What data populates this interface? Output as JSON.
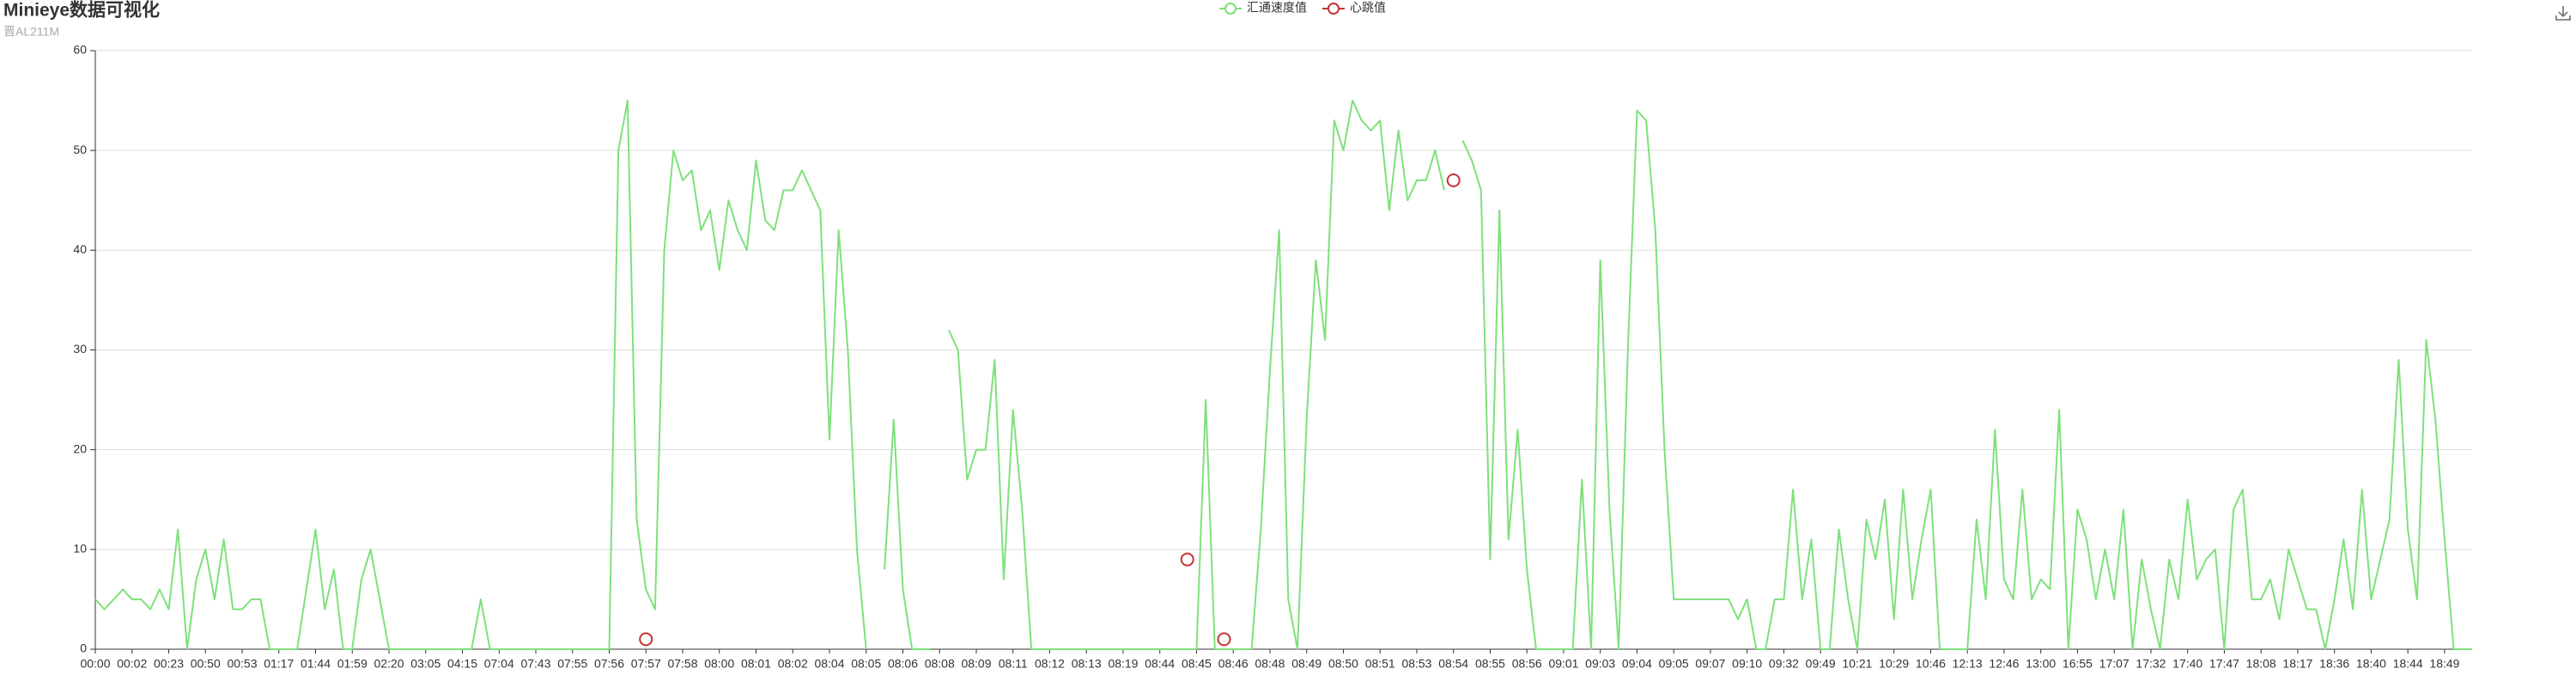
{
  "chart_data": {
    "type": "line",
    "title": "Minieye数据可视化",
    "subtitle": "晋AL211M",
    "categories": [
      "00:00",
      null,
      null,
      null,
      "00:02",
      null,
      null,
      null,
      "00:23",
      null,
      null,
      null,
      "00:50",
      null,
      null,
      null,
      "00:53",
      null,
      null,
      null,
      "01:17",
      null,
      null,
      null,
      "01:44",
      null,
      null,
      null,
      "01:59",
      null,
      null,
      null,
      "02:20",
      null,
      null,
      null,
      "03:05",
      null,
      null,
      null,
      "04:15",
      null,
      null,
      null,
      "07:04",
      null,
      null,
      null,
      "07:43",
      null,
      null,
      null,
      "07:55",
      null,
      null,
      null,
      "07:56",
      null,
      null,
      null,
      "07:57",
      null,
      null,
      null,
      "07:58",
      null,
      null,
      null,
      "08:00",
      null,
      null,
      null,
      "08:01",
      null,
      null,
      null,
      "08:02",
      null,
      null,
      null,
      "08:04",
      null,
      null,
      null,
      "08:05",
      null,
      null,
      null,
      "08:06",
      null,
      null,
      null,
      "08:08",
      null,
      null,
      null,
      "08:09",
      null,
      null,
      null,
      "08:11",
      null,
      null,
      null,
      "08:12",
      null,
      null,
      null,
      "08:13",
      null,
      null,
      null,
      "08:19",
      null,
      null,
      null,
      "08:44",
      null,
      null,
      null,
      "08:45",
      null,
      null,
      null,
      "08:46",
      null,
      null,
      null,
      "08:48",
      null,
      null,
      null,
      "08:49",
      null,
      null,
      null,
      "08:50",
      null,
      null,
      null,
      "08:51",
      null,
      null,
      null,
      "08:53",
      null,
      null,
      null,
      "08:54",
      null,
      null,
      null,
      "08:55",
      null,
      null,
      null,
      "08:56",
      null,
      null,
      null,
      "09:01",
      null,
      null,
      null,
      "09:03",
      null,
      null,
      null,
      "09:04",
      null,
      null,
      null,
      "09:05",
      null,
      null,
      null,
      "09:07",
      null,
      null,
      null,
      "09:10",
      null,
      null,
      null,
      "09:32",
      null,
      null,
      null,
      "09:49",
      null,
      null,
      null,
      "10:21",
      null,
      null,
      null,
      "10:29",
      null,
      null,
      null,
      "10:46",
      null,
      null,
      null,
      "12:13",
      null,
      null,
      null,
      "12:46",
      null,
      null,
      null,
      "13:00",
      null,
      null,
      null,
      "16:55",
      null,
      null,
      null,
      "17:07",
      null,
      null,
      null,
      "17:32",
      null,
      null,
      null,
      "17:40",
      null,
      null,
      null,
      "17:47",
      null,
      null,
      null,
      "18:08",
      null,
      null,
      null,
      "18:17",
      null,
      null,
      null,
      "18:36",
      null,
      null,
      null,
      "18:40",
      null,
      null,
      null,
      "18:44",
      null,
      null,
      null,
      "18:49",
      null,
      null,
      null
    ],
    "series": [
      {
        "name": "汇通速度值",
        "color": "#7fe07b",
        "values": [
          5,
          4,
          5,
          6,
          5,
          5,
          4,
          6,
          4,
          12,
          0,
          7,
          10,
          5,
          11,
          4,
          4,
          5,
          5,
          0,
          0,
          0,
          0,
          6,
          12,
          4,
          8,
          0,
          0,
          7,
          10,
          5,
          0,
          0,
          0,
          0,
          0,
          0,
          0,
          0,
          0,
          0,
          5,
          0,
          0,
          0,
          0,
          0,
          0,
          0,
          0,
          0,
          0,
          0,
          0,
          0,
          0,
          50,
          55,
          13,
          6,
          4,
          40,
          50,
          47,
          48,
          42,
          44,
          38,
          45,
          42,
          40,
          49,
          43,
          42,
          46,
          46,
          48,
          46,
          44,
          21,
          42,
          30,
          10,
          0,
          null,
          8,
          23,
          6,
          0,
          0,
          0,
          null,
          32,
          30,
          17,
          20,
          20,
          29,
          7,
          24,
          14,
          0,
          0,
          0,
          0,
          0,
          0,
          0,
          0,
          0,
          0,
          0,
          0,
          0,
          0,
          0,
          0,
          0,
          0,
          0,
          25,
          0,
          0,
          0,
          0,
          0,
          12,
          28,
          42,
          5,
          0,
          23,
          39,
          31,
          53,
          50,
          55,
          53,
          52,
          53,
          44,
          52,
          45,
          47,
          47,
          50,
          46,
          null,
          51,
          49,
          46,
          9,
          44,
          11,
          22,
          8,
          0,
          0,
          0,
          0,
          0,
          17,
          0,
          39,
          14,
          0,
          30,
          54,
          53,
          42,
          20,
          5,
          5,
          5,
          5,
          5,
          5,
          5,
          3,
          5,
          0,
          0,
          5,
          5,
          16,
          5,
          11,
          0,
          0,
          12,
          5,
          0,
          13,
          9,
          15,
          3,
          16,
          5,
          11,
          16,
          0,
          0,
          0,
          0,
          13,
          5,
          22,
          7,
          5,
          16,
          5,
          7,
          6,
          24,
          0,
          14,
          11,
          5,
          10,
          5,
          14,
          0,
          9,
          4,
          0,
          9,
          5,
          15,
          7,
          9,
          10,
          0,
          14,
          16,
          5,
          5,
          7,
          3,
          10,
          7,
          4,
          4,
          0,
          5,
          11,
          4,
          16,
          5,
          9,
          13,
          29,
          12,
          5,
          31,
          23,
          11,
          0,
          0,
          0
        ]
      },
      {
        "name": "心跳值",
        "color": "#c23531",
        "values": [
          null,
          null,
          null,
          null,
          null,
          null,
          null,
          null,
          null,
          null,
          null,
          null,
          null,
          null,
          null,
          null,
          null,
          null,
          null,
          null,
          null,
          null,
          null,
          null,
          null,
          null,
          null,
          null,
          null,
          null,
          null,
          null,
          null,
          null,
          null,
          null,
          null,
          null,
          null,
          null,
          null,
          null,
          null,
          null,
          null,
          null,
          null,
          null,
          null,
          null,
          null,
          null,
          null,
          null,
          null,
          null,
          null,
          null,
          null,
          null,
          1,
          null,
          null,
          null,
          null,
          null,
          null,
          null,
          null,
          null,
          null,
          null,
          null,
          null,
          null,
          null,
          null,
          null,
          null,
          null,
          null,
          null,
          null,
          null,
          null,
          null,
          null,
          null,
          null,
          null,
          null,
          null,
          null,
          null,
          null,
          null,
          null,
          null,
          null,
          null,
          null,
          null,
          null,
          null,
          null,
          null,
          null,
          null,
          null,
          null,
          null,
          null,
          null,
          null,
          null,
          null,
          null,
          null,
          null,
          9,
          null,
          null,
          null,
          1,
          null,
          null,
          null,
          null,
          null,
          null,
          null,
          null,
          null,
          null,
          null,
          null,
          null,
          null,
          null,
          null,
          null,
          null,
          null,
          null,
          null,
          null,
          null,
          null,
          47,
          null,
          null,
          null,
          null,
          null,
          null,
          null,
          null,
          null,
          null,
          null,
          null,
          null,
          null,
          null,
          null,
          null,
          null,
          null,
          null,
          null,
          null,
          null,
          null,
          null,
          null,
          null,
          null,
          null,
          null,
          null,
          null,
          null,
          null,
          null,
          null,
          null,
          null,
          null,
          null,
          null,
          null,
          null,
          null,
          null,
          null,
          null,
          null,
          null,
          null,
          null,
          null,
          null,
          null,
          null,
          null,
          null,
          null,
          null,
          null,
          null,
          null,
          null,
          null,
          null,
          null,
          null,
          null,
          null,
          null,
          null,
          null,
          null,
          null,
          null,
          null,
          null,
          null,
          null,
          null,
          null,
          null,
          null,
          null,
          null,
          null,
          null,
          null,
          null,
          null,
          null,
          null,
          null,
          null,
          null,
          null,
          null,
          null,
          null,
          null,
          null,
          null,
          null,
          null,
          null,
          null,
          null,
          null,
          null,
          null,
          null
        ]
      }
    ],
    "ylim": [
      0,
      60
    ],
    "yticks": [
      0,
      10,
      20,
      30,
      40,
      50,
      60
    ],
    "grid": true
  }
}
